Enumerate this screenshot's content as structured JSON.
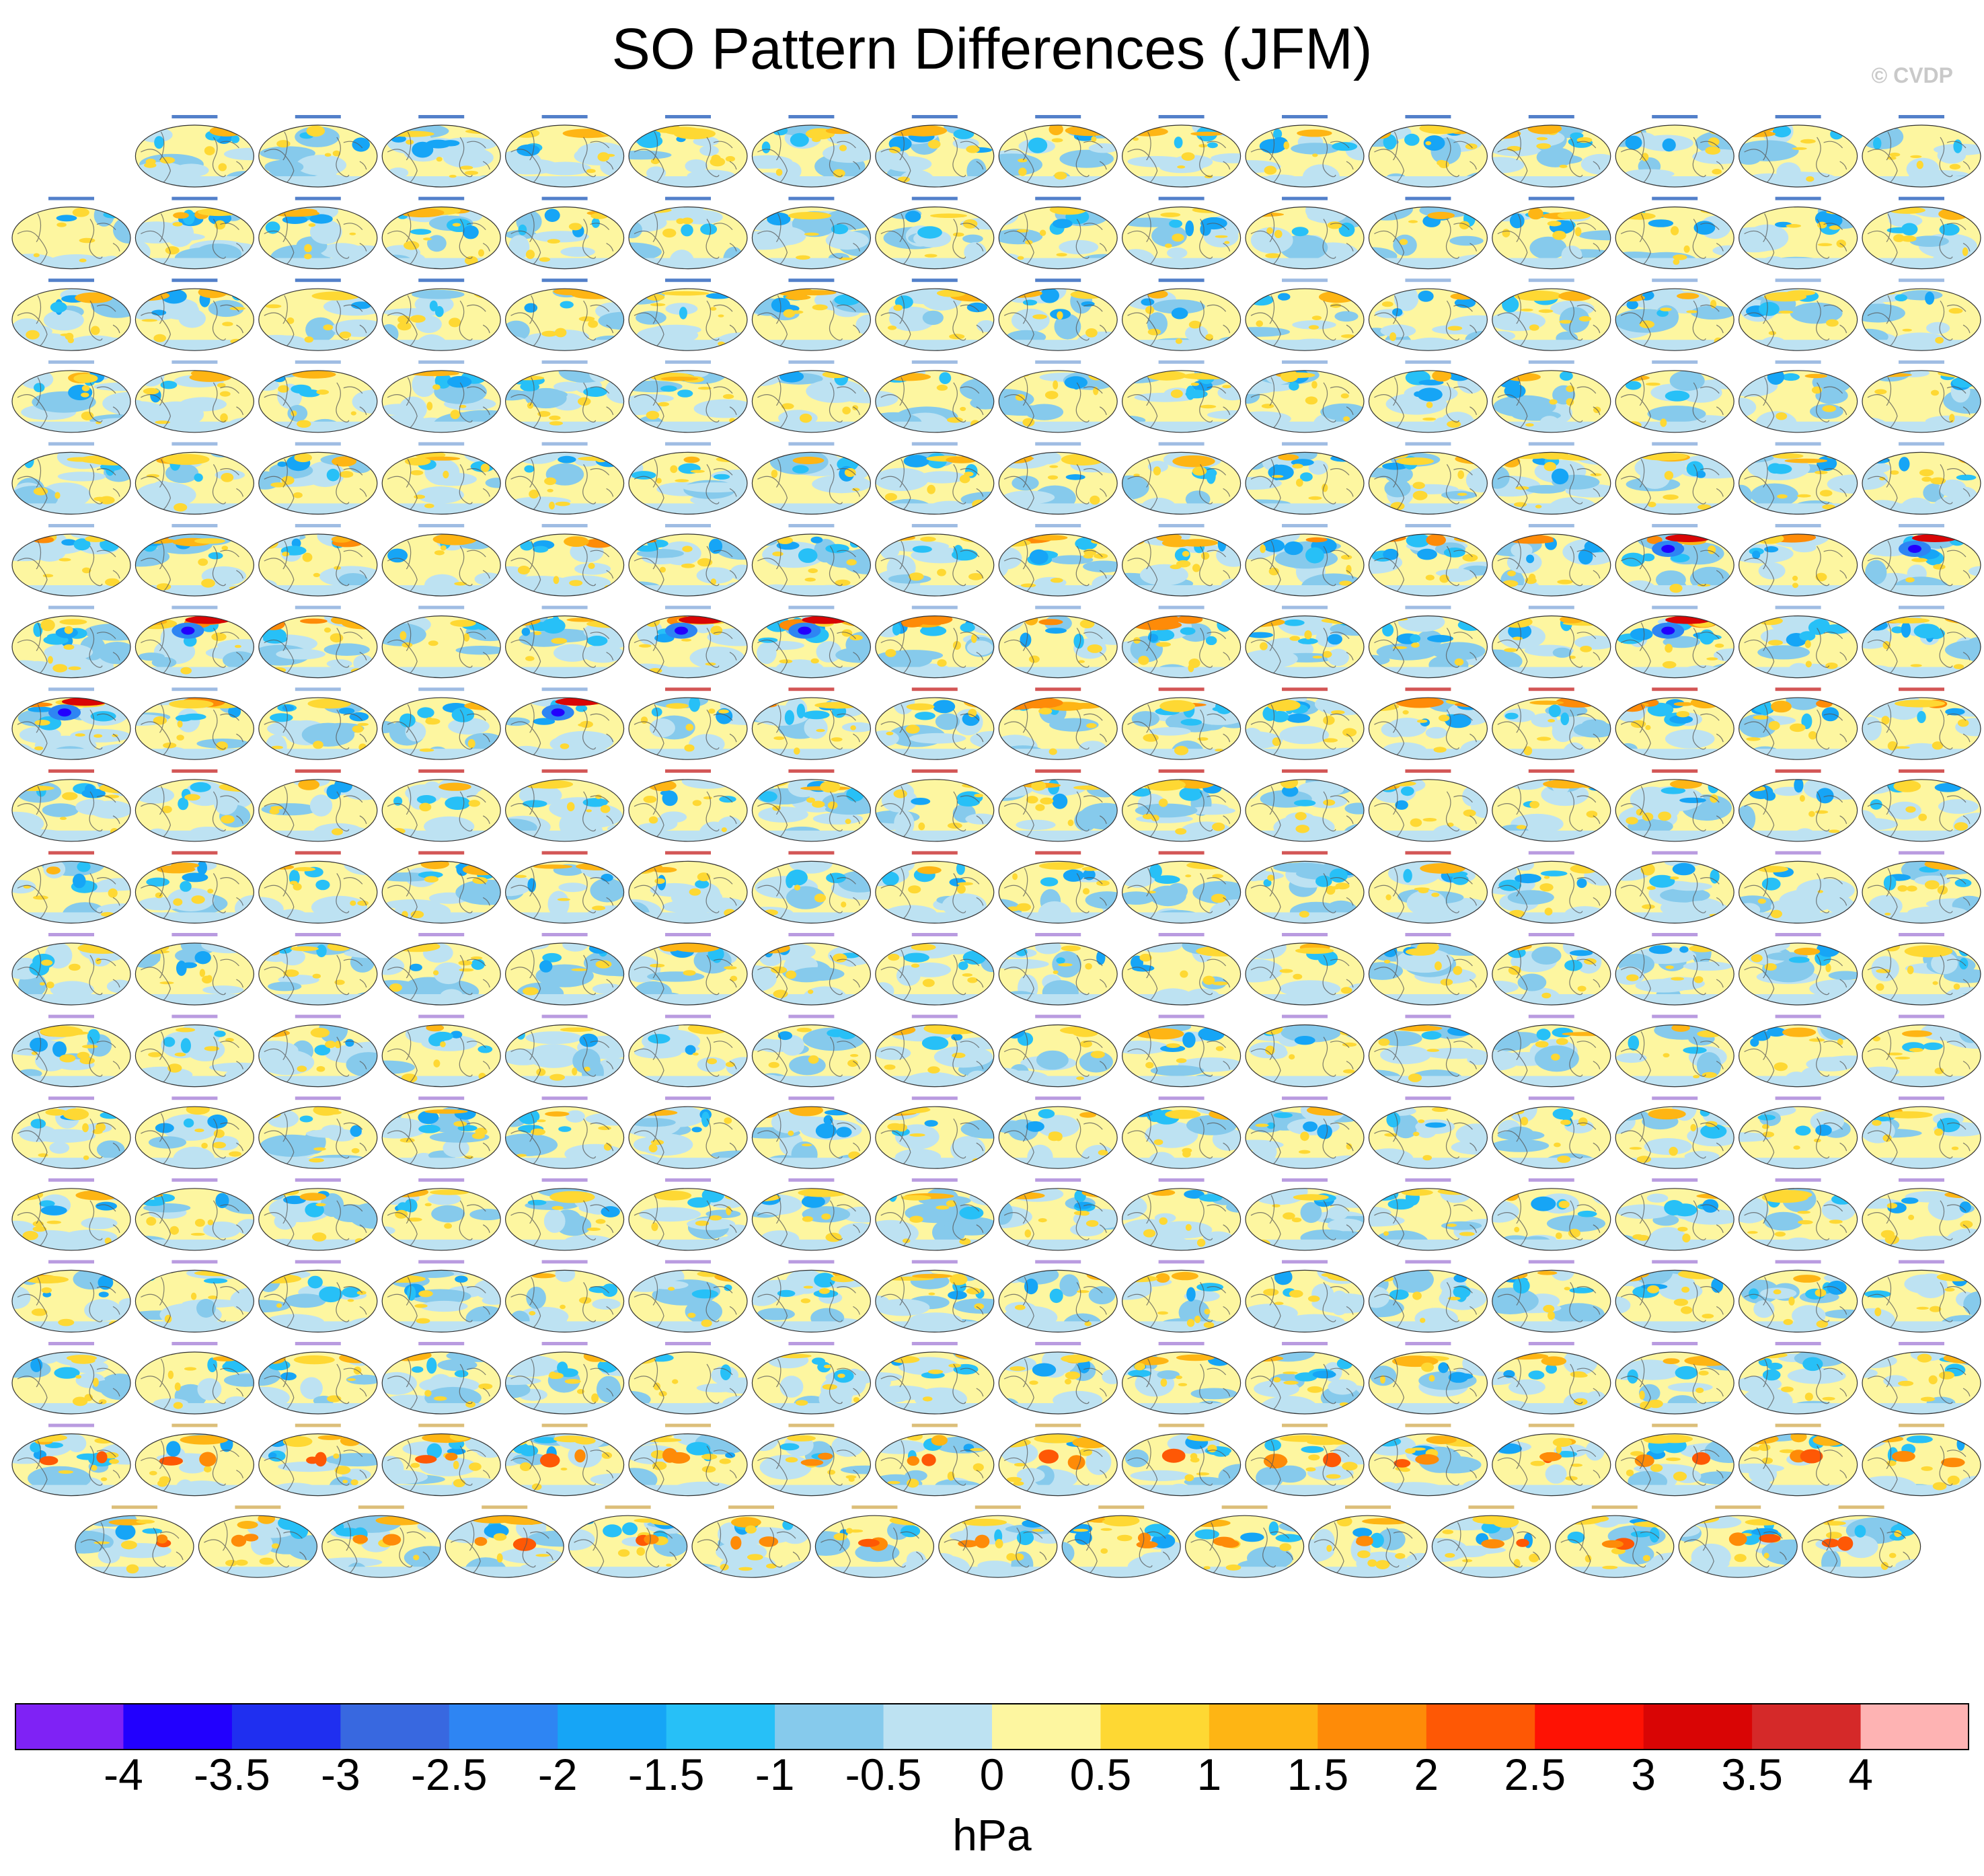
{
  "title": "SO Pattern Differences (JFM)",
  "watermark": "© CVDP",
  "chart_data": {
    "type": "heatmap",
    "title": "SO Pattern Differences (JFM)",
    "description_note": "",
    "colorbar": {
      "units": "hPa",
      "tick_labels": [
        "-4",
        "-3.5",
        "-3",
        "-2.5",
        "-2",
        "-1.5",
        "-1",
        "-0.5",
        "0",
        "0.5",
        "1",
        "1.5",
        "2",
        "2.5",
        "3",
        "3.5",
        "4"
      ],
      "colors": [
        "#7f22f5",
        "#2200fe",
        "#1f2ff0",
        "#3868e0",
        "#2e85f3",
        "#16a5f6",
        "#27c0f7",
        "#86caec",
        "#bde2f2",
        "#fdf6a0",
        "#fed833",
        "#feb514",
        "#fe8b08",
        "#fe5805",
        "#fe1204",
        "#d90505",
        "#d52929",
        "#feb3b3"
      ]
    },
    "panel_rows": [
      15,
      16,
      16,
      16,
      16,
      16,
      16,
      16,
      16,
      16,
      16,
      16,
      16,
      16,
      16,
      16,
      16,
      15
    ],
    "panel_title_colors": {
      "access": "#1a56b8",
      "canesm": "#7fa5d9",
      "cesm1": "#c41e1e",
      "cesm2": "#a27ad6",
      "csiro": "#d0a84c"
    },
    "panel_title_families": [
      [
        "access",
        15
      ],
      [
        "access",
        16
      ],
      [
        "access",
        10
      ],
      [
        "canesm",
        6
      ],
      [
        "canesm",
        16
      ],
      [
        "canesm",
        16
      ],
      [
        "canesm",
        16
      ],
      [
        "canesm",
        16
      ],
      [
        "canesm",
        5
      ],
      [
        "cesm1",
        11
      ],
      [
        "cesm1",
        16
      ],
      [
        "cesm1",
        12
      ],
      [
        "cesm2",
        4
      ],
      [
        "cesm2",
        16
      ],
      [
        "cesm2",
        16
      ],
      [
        "cesm2",
        16
      ],
      [
        "cesm2",
        16
      ],
      [
        "cesm2",
        16
      ],
      [
        "cesm2",
        16
      ],
      [
        "cesm2",
        1
      ],
      [
        "csiro",
        15
      ],
      [
        "csiro",
        15
      ]
    ],
    "panel_strength": [
      0.9,
      1.0,
      1.0,
      1.1,
      1.1,
      1.3,
      1.6,
      1.5,
      1.0,
      1.0,
      0.8,
      0.8,
      0.8,
      0.8,
      0.8,
      0.8,
      1.2,
      1.2
    ],
    "strong_panels": [
      [
        5,
        13
      ],
      [
        5,
        15
      ],
      [
        6,
        1
      ],
      [
        6,
        5
      ],
      [
        6,
        6
      ],
      [
        6,
        13
      ],
      [
        7,
        0
      ],
      [
        7,
        4
      ]
    ]
  }
}
